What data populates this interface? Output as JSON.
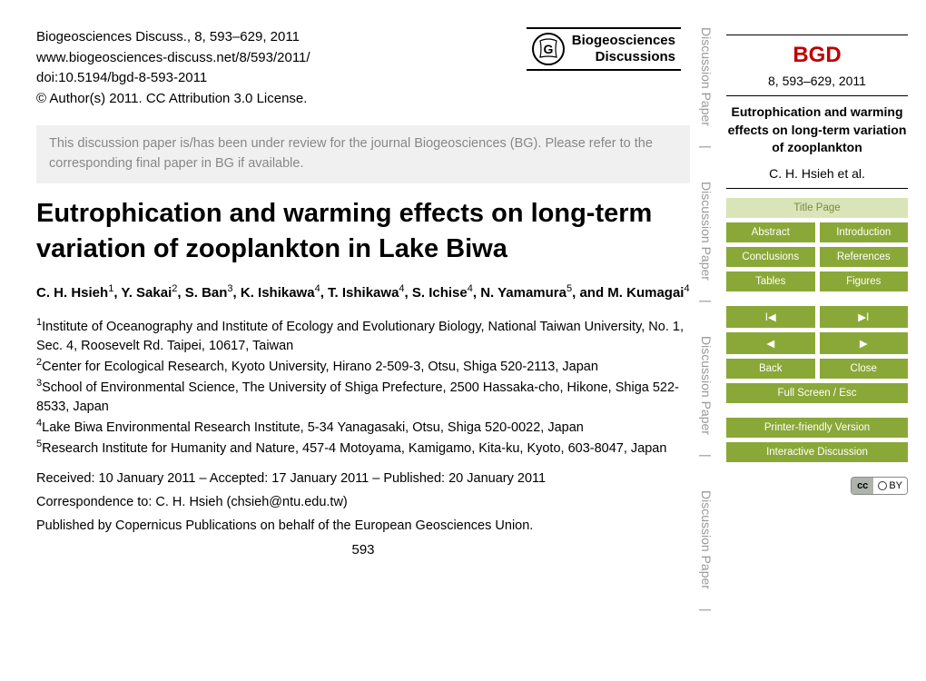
{
  "header": {
    "citation": "Biogeosciences Discuss., 8, 593–629, 2011",
    "url": "www.biogeosciences-discuss.net/8/593/2011/",
    "doi": "doi:10.5194/bgd-8-593-2011",
    "copyright": "© Author(s) 2011. CC Attribution 3.0 License.",
    "badge_line1": "Biogeosciences",
    "badge_line2": "Discussions"
  },
  "review_note": "This discussion paper is/has been under review for the journal Biogeosciences (BG). Please refer to the corresponding final paper in BG if available.",
  "title": "Eutrophication and warming effects on long-term variation of zooplankton in Lake Biwa",
  "authors_html": "C. H. Hsieh<sup>1</sup>, Y. Sakai<sup>2</sup>, S. Ban<sup>3</sup>, K. Ishikawa<sup>4</sup>, T. Ishikawa<sup>4</sup>, S. Ichise<sup>4</sup>, N. Yamamura<sup>5</sup>, and M. Kumagai<sup>4</sup>",
  "affiliations": [
    "<sup>1</sup>Institute of Oceanography and Institute of Ecology and Evolutionary Biology, National Taiwan University, No. 1, Sec. 4, Roosevelt Rd. Taipei, 10617, Taiwan",
    "<sup>2</sup>Center for Ecological Research, Kyoto University, Hirano 2-509-3, Otsu, Shiga 520-2113, Japan",
    "<sup>3</sup>School of Environmental Science, The University of Shiga Prefecture, 2500 Hassaka-cho, Hikone, Shiga 522-8533, Japan",
    "<sup>4</sup>Lake Biwa Environmental Research Institute, 5-34 Yanagasaki, Otsu, Shiga 520-0022, Japan",
    "<sup>5</sup>Research Institute for Humanity and Nature, 457-4 Motoyama, Kamigamo, Kita-ku, Kyoto, 603-8047, Japan"
  ],
  "dates": "Received: 10 January 2011 – Accepted: 17 January 2011 – Published: 20 January 2011",
  "correspondence": "Correspondence to: C. H. Hsieh (chsieh@ntu.edu.tw)",
  "published_by": "Published by Copernicus Publications on behalf of the European Geosciences Union.",
  "page_number": "593",
  "side_labels": [
    "Discussion Paper",
    "Discussion Paper",
    "Discussion Paper",
    "Discussion Paper"
  ],
  "sidebar": {
    "abbr": "BGD",
    "issue": "8, 593–629, 2011",
    "paper_title": "Eutrophication and warming effects on long-term variation of zooplankton",
    "paper_authors": "C. H. Hsieh et al.",
    "nav": {
      "title_page": "Title Page",
      "abstract": "Abstract",
      "introduction": "Introduction",
      "conclusions": "Conclusions",
      "references": "References",
      "tables": "Tables",
      "figures": "Figures",
      "first": "I◀",
      "last": "▶I",
      "prev": "◀",
      "next": "▶",
      "back": "Back",
      "close": "Close",
      "fullscreen": "Full Screen / Esc",
      "printer": "Printer-friendly Version",
      "interactive": "Interactive Discussion"
    },
    "cc_label": "cc",
    "cc_by": "BY"
  },
  "colors": {
    "accent_red": "#c00000",
    "nav_green": "#8aa838",
    "nav_light": "#d9e4b8",
    "nav_light_text": "#7a8a40",
    "grey_text": "#888888"
  }
}
